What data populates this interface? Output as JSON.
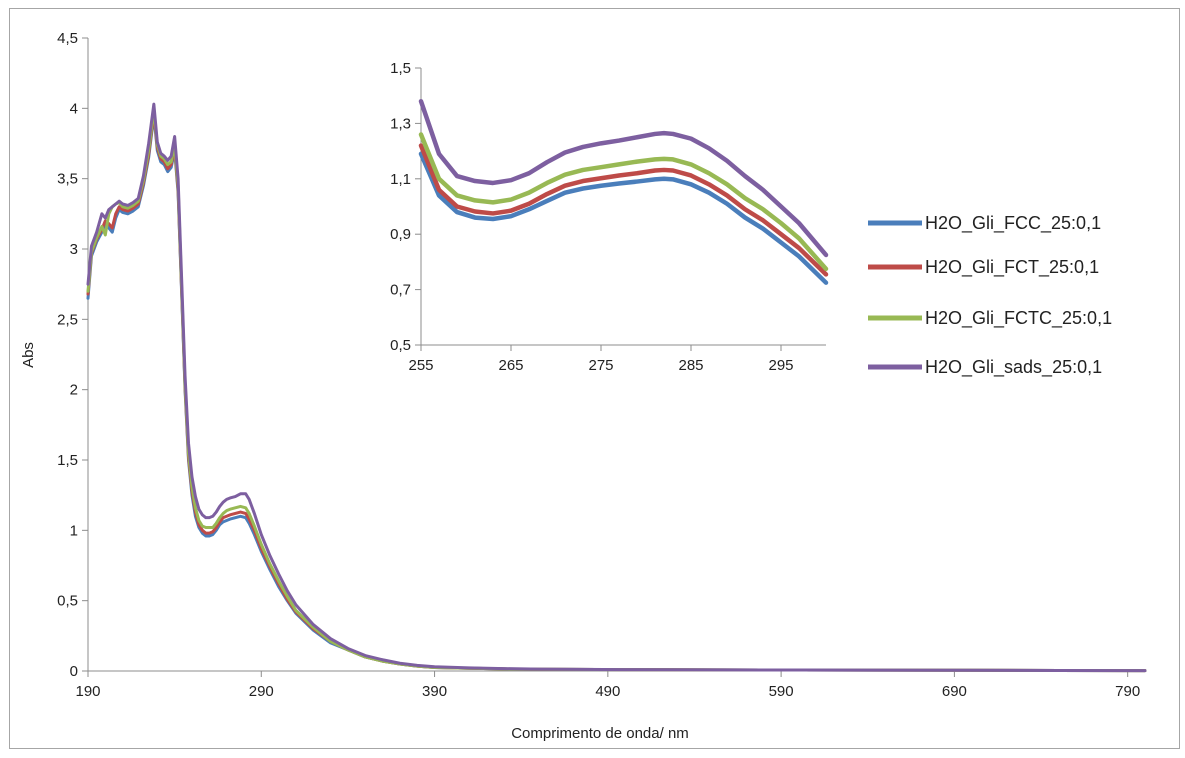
{
  "chart_data": [
    {
      "type": "line",
      "xlabel": "Comprimento de onda/ nm",
      "ylabel": "Abs",
      "xlim": [
        190,
        800
      ],
      "ylim": [
        0,
        4.5
      ],
      "x_ticks": [
        "190",
        "290",
        "390",
        "490",
        "590",
        "690",
        "790"
      ],
      "y_ticks": [
        "0",
        "0,5",
        "1",
        "1,5",
        "2",
        "2,5",
        "3",
        "3,5",
        "4",
        "4,5"
      ],
      "grid": false,
      "legend_position": "right",
      "series": [
        {
          "name": "H2O_Gli_FCC_25:0,1",
          "color": "#4a7ebb",
          "x": [
            190,
            192,
            195,
            198,
            200,
            202,
            204,
            206,
            208,
            210,
            213,
            216,
            219,
            222,
            225,
            228,
            230,
            232,
            234,
            236,
            238,
            240,
            242,
            244,
            246,
            248,
            250,
            252,
            254,
            256,
            258,
            260,
            262,
            264,
            266,
            268,
            270,
            272,
            275,
            278,
            281,
            283,
            286,
            290,
            295,
            300,
            305,
            310,
            320,
            330,
            340,
            350,
            360,
            370,
            380,
            390,
            410,
            430,
            450,
            500,
            550,
            600,
            650,
            700,
            750,
            800
          ],
          "y": [
            2.65,
            2.95,
            3.05,
            3.12,
            3.18,
            3.15,
            3.12,
            3.22,
            3.28,
            3.26,
            3.25,
            3.27,
            3.3,
            3.45,
            3.65,
            3.95,
            3.7,
            3.62,
            3.6,
            3.55,
            3.58,
            3.7,
            3.4,
            2.7,
            2.0,
            1.5,
            1.25,
            1.1,
            1.02,
            0.98,
            0.96,
            0.96,
            0.97,
            1.0,
            1.04,
            1.06,
            1.07,
            1.08,
            1.09,
            1.1,
            1.09,
            1.05,
            0.97,
            0.85,
            0.72,
            0.6,
            0.5,
            0.41,
            0.29,
            0.2,
            0.15,
            0.1,
            0.07,
            0.05,
            0.035,
            0.025,
            0.02,
            0.015,
            0.012,
            0.01,
            0.008,
            0.007,
            0.006,
            0.005,
            0.004,
            0.003
          ]
        },
        {
          "name": "H2O_Gli_FCT_25:0,1",
          "color": "#be4b48",
          "x": [
            190,
            192,
            195,
            198,
            200,
            202,
            204,
            206,
            208,
            210,
            213,
            216,
            219,
            222,
            225,
            228,
            230,
            232,
            234,
            236,
            238,
            240,
            242,
            244,
            246,
            248,
            250,
            252,
            254,
            256,
            258,
            260,
            262,
            264,
            266,
            268,
            270,
            272,
            275,
            278,
            281,
            283,
            286,
            290,
            295,
            300,
            305,
            310,
            320,
            330,
            340,
            350,
            360,
            370,
            380,
            390,
            410,
            430,
            450,
            500,
            550,
            600,
            650,
            700,
            750,
            800
          ],
          "y": [
            2.68,
            2.97,
            3.07,
            3.14,
            3.2,
            3.18,
            3.15,
            3.25,
            3.3,
            3.28,
            3.27,
            3.29,
            3.32,
            3.47,
            3.67,
            3.97,
            3.72,
            3.64,
            3.62,
            3.57,
            3.6,
            3.72,
            3.42,
            2.72,
            2.02,
            1.52,
            1.28,
            1.13,
            1.04,
            1.0,
            0.98,
            0.98,
            0.99,
            1.02,
            1.06,
            1.09,
            1.1,
            1.11,
            1.12,
            1.13,
            1.12,
            1.08,
            1.0,
            0.87,
            0.74,
            0.62,
            0.51,
            0.42,
            0.3,
            0.21,
            0.15,
            0.1,
            0.07,
            0.05,
            0.035,
            0.025,
            0.02,
            0.015,
            0.012,
            0.01,
            0.008,
            0.007,
            0.006,
            0.005,
            0.004,
            0.003
          ]
        },
        {
          "name": "H2O_Gli_FCTC_25:0,1",
          "color": "#98b954",
          "x": [
            190,
            192,
            195,
            198,
            200,
            202,
            204,
            206,
            208,
            210,
            213,
            216,
            219,
            222,
            225,
            228,
            230,
            232,
            234,
            236,
            238,
            240,
            242,
            244,
            246,
            248,
            250,
            252,
            254,
            256,
            258,
            260,
            262,
            264,
            266,
            268,
            270,
            272,
            275,
            278,
            281,
            283,
            286,
            290,
            295,
            300,
            305,
            310,
            320,
            330,
            340,
            350,
            360,
            370,
            380,
            390,
            410,
            430,
            450,
            500,
            550,
            600,
            650,
            700,
            750,
            800
          ],
          "y": [
            2.7,
            2.98,
            3.08,
            3.16,
            3.1,
            3.25,
            3.3,
            3.32,
            3.33,
            3.3,
            3.29,
            3.31,
            3.34,
            3.49,
            3.7,
            3.99,
            3.74,
            3.66,
            3.64,
            3.6,
            3.62,
            3.74,
            3.45,
            2.74,
            2.04,
            1.55,
            1.31,
            1.16,
            1.07,
            1.03,
            1.02,
            1.02,
            1.02,
            1.05,
            1.09,
            1.12,
            1.14,
            1.15,
            1.16,
            1.17,
            1.16,
            1.12,
            1.03,
            0.9,
            0.76,
            0.64,
            0.53,
            0.43,
            0.31,
            0.21,
            0.15,
            0.1,
            0.07,
            0.05,
            0.035,
            0.025,
            0.02,
            0.015,
            0.012,
            0.01,
            0.008,
            0.007,
            0.006,
            0.005,
            0.004,
            0.003
          ]
        },
        {
          "name": "H2O_Gli_sads_25:0,1",
          "color": "#7d5fa0",
          "x": [
            190,
            192,
            195,
            198,
            200,
            202,
            204,
            206,
            208,
            210,
            213,
            216,
            219,
            222,
            225,
            228,
            230,
            232,
            234,
            236,
            238,
            240,
            242,
            244,
            246,
            248,
            250,
            252,
            254,
            256,
            258,
            260,
            262,
            264,
            266,
            268,
            270,
            272,
            275,
            278,
            281,
            283,
            286,
            290,
            295,
            300,
            305,
            310,
            320,
            330,
            340,
            350,
            360,
            370,
            380,
            390,
            410,
            430,
            450,
            500,
            550,
            600,
            650,
            700,
            750,
            800
          ],
          "y": [
            2.75,
            3.02,
            3.12,
            3.25,
            3.22,
            3.28,
            3.3,
            3.32,
            3.34,
            3.32,
            3.31,
            3.33,
            3.36,
            3.52,
            3.75,
            4.03,
            3.76,
            3.68,
            3.66,
            3.63,
            3.66,
            3.8,
            3.5,
            2.8,
            2.1,
            1.62,
            1.38,
            1.24,
            1.15,
            1.11,
            1.09,
            1.09,
            1.1,
            1.13,
            1.17,
            1.2,
            1.22,
            1.23,
            1.24,
            1.26,
            1.26,
            1.22,
            1.12,
            0.97,
            0.82,
            0.69,
            0.57,
            0.47,
            0.33,
            0.23,
            0.16,
            0.11,
            0.08,
            0.055,
            0.04,
            0.03,
            0.022,
            0.017,
            0.013,
            0.01,
            0.008,
            0.007,
            0.006,
            0.005,
            0.004,
            0.003
          ]
        }
      ]
    },
    {
      "type": "line",
      "xlabel": "",
      "ylabel": "",
      "xlim": [
        255,
        300
      ],
      "ylim": [
        0.5,
        1.5
      ],
      "x_ticks": [
        "255",
        "265",
        "275",
        "285",
        "295"
      ],
      "y_ticks": [
        "0,5",
        "0,7",
        "0,9",
        "1,1",
        "1,3",
        "1,5"
      ],
      "grid": false,
      "series": [
        {
          "name": "H2O_Gli_FCC_25:0,1",
          "color": "#4a7ebb",
          "x": [
            255,
            257,
            259,
            261,
            263,
            265,
            267,
            269,
            271,
            273,
            275,
            277,
            279,
            281,
            282,
            283,
            285,
            287,
            289,
            291,
            293,
            295,
            297,
            300
          ],
          "y": [
            1.19,
            1.04,
            0.98,
            0.96,
            0.955,
            0.965,
            0.99,
            1.02,
            1.05,
            1.065,
            1.075,
            1.083,
            1.09,
            1.098,
            1.1,
            1.098,
            1.08,
            1.05,
            1.01,
            0.96,
            0.92,
            0.87,
            0.82,
            0.725
          ]
        },
        {
          "name": "H2O_Gli_FCT_25:0,1",
          "color": "#be4b48",
          "x": [
            255,
            257,
            259,
            261,
            263,
            265,
            267,
            269,
            271,
            273,
            275,
            277,
            279,
            281,
            282,
            283,
            285,
            287,
            289,
            291,
            293,
            295,
            297,
            300
          ],
          "y": [
            1.22,
            1.06,
            1.0,
            0.982,
            0.975,
            0.985,
            1.01,
            1.045,
            1.075,
            1.092,
            1.102,
            1.112,
            1.12,
            1.13,
            1.132,
            1.13,
            1.112,
            1.08,
            1.04,
            0.99,
            0.95,
            0.9,
            0.85,
            0.755
          ]
        },
        {
          "name": "H2O_Gli_FCTC_25:0,1",
          "color": "#98b954",
          "x": [
            255,
            257,
            259,
            261,
            263,
            265,
            267,
            269,
            271,
            273,
            275,
            277,
            279,
            281,
            282,
            283,
            285,
            287,
            289,
            291,
            293,
            295,
            297,
            300
          ],
          "y": [
            1.26,
            1.1,
            1.04,
            1.022,
            1.015,
            1.025,
            1.05,
            1.085,
            1.115,
            1.132,
            1.142,
            1.152,
            1.162,
            1.17,
            1.172,
            1.17,
            1.152,
            1.12,
            1.08,
            1.03,
            0.99,
            0.94,
            0.885,
            0.775
          ]
        },
        {
          "name": "H2O_Gli_sads_25:0,1",
          "color": "#7d5fa0",
          "x": [
            255,
            257,
            259,
            261,
            263,
            265,
            267,
            269,
            271,
            273,
            275,
            277,
            279,
            281,
            282,
            283,
            285,
            287,
            289,
            291,
            293,
            295,
            297,
            300
          ],
          "y": [
            1.38,
            1.19,
            1.11,
            1.092,
            1.085,
            1.095,
            1.12,
            1.16,
            1.195,
            1.215,
            1.228,
            1.238,
            1.25,
            1.262,
            1.265,
            1.262,
            1.245,
            1.21,
            1.165,
            1.11,
            1.06,
            1.0,
            0.94,
            0.825
          ]
        }
      ]
    }
  ]
}
